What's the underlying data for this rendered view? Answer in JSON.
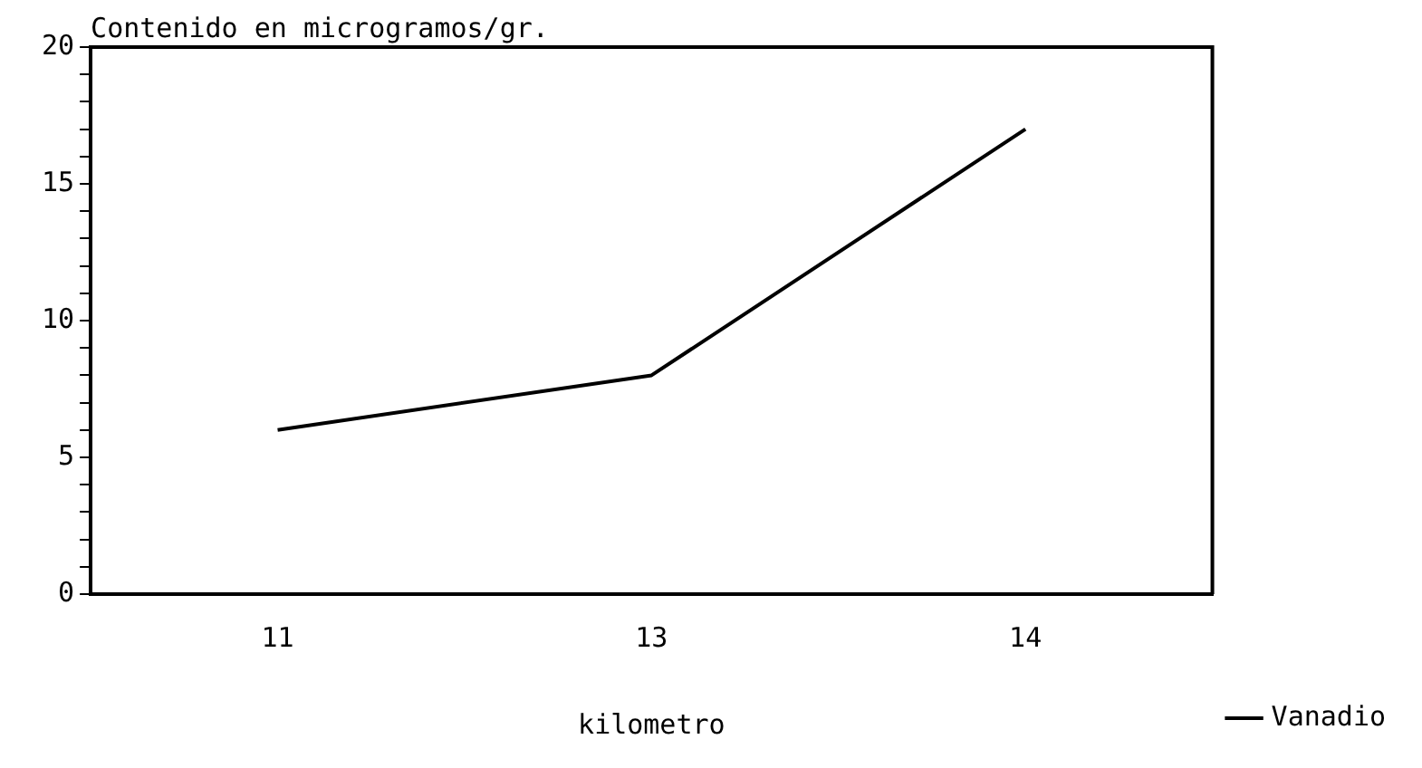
{
  "chart_data": {
    "type": "line",
    "ylabel": "Contenido en microgramos/gr.",
    "xlabel": "kilometro",
    "categories": [
      "11",
      "13",
      "14"
    ],
    "series": [
      {
        "name": "Vanadio",
        "color": "#000000",
        "values": [
          6,
          8,
          17
        ]
      }
    ],
    "ylim": [
      0,
      20
    ],
    "yticks": [
      0,
      {
        "value": 1,
        "label": null
      },
      {
        "value": 2,
        "label": null
      },
      {
        "value": 3,
        "label": null
      },
      {
        "value": 4,
        "label": null
      },
      5,
      {
        "value": 6,
        "label": null
      },
      {
        "value": 7,
        "label": null
      },
      {
        "value": 8,
        "label": null
      },
      {
        "value": 9,
        "label": null
      },
      10,
      {
        "value": 11,
        "label": null
      },
      {
        "value": 12,
        "label": null
      },
      {
        "value": 13,
        "label": null
      },
      {
        "value": 14,
        "label": null
      },
      15,
      {
        "value": 16,
        "label": null
      },
      {
        "value": 17,
        "label": null
      },
      {
        "value": 18,
        "label": null
      },
      {
        "value": 19,
        "label": null
      },
      20
    ],
    "grid": false,
    "legend": "bottom right",
    "marker": "none",
    "line_style": "solid"
  }
}
